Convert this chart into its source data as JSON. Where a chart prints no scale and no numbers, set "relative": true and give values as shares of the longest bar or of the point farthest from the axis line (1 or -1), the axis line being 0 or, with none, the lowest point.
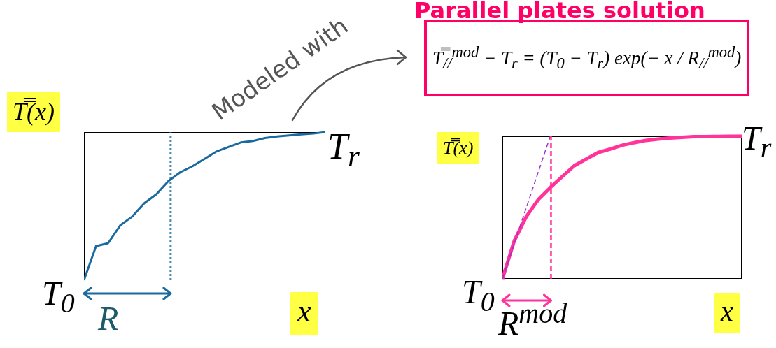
{
  "chart_data": [
    {
      "type": "line",
      "relative": true,
      "ylabel": "T̿(x)",
      "xlabel": "x",
      "tick_labels": false,
      "categories": [
        null,
        null,
        null,
        null,
        null,
        null,
        null,
        null,
        null,
        null,
        null,
        null,
        null,
        null,
        null,
        null,
        null,
        null,
        null,
        null,
        null
      ],
      "series": [
        {
          "color": "#1a6aa0",
          "values": [
            0,
            0.23,
            0.25,
            0.37,
            0.43,
            0.52,
            0.58,
            0.67,
            0.73,
            0.77,
            0.82,
            0.87,
            0.9,
            0.93,
            0.94,
            0.96,
            0.97,
            0.978,
            0.985,
            0.99,
            1
          ]
        }
      ],
      "annotations": [
        "T$_{r}$",
        "T$_{0}$",
        "R",
        "Modeled with"
      ]
    },
    {
      "type": "line",
      "relative": true,
      "title": "Parallel plates solution",
      "ylabel": "T̿(x)",
      "xlabel": "x",
      "tick_labels": false,
      "categories": [
        null,
        null,
        null,
        null,
        null,
        null,
        null,
        null,
        null,
        null,
        null,
        null,
        null,
        null,
        null,
        null,
        null,
        null,
        null,
        null,
        null
      ],
      "series": [
        {
          "color": "#ff3399",
          "values": [
            0,
            0.268,
            0.437,
            0.556,
            0.64,
            0.717,
            0.793,
            0.84,
            0.886,
            0.91,
            0.937,
            0.955,
            0.971,
            0.98,
            0.988,
            0.993,
            0.997,
            0.998,
            0.999,
            1,
            1
          ]
        },
        {
          "color": "#9933cc",
          "line_style": "dashed",
          "values": [
            0,
            0.25,
            0.5,
            0.75,
            1,
            null,
            null,
            null,
            null,
            null,
            null,
            null,
            null,
            null,
            null,
            null,
            null,
            null,
            null,
            null,
            null
          ]
        }
      ],
      "annotations": [
        "T$_{r}$",
        "T$_{0}$",
        "R$^{mod}$",
        "T̿$_{//}$$^{mod}$ − T$_{r}$ = (T$_{0}$ − T$_{r}$) exp(− x / R$_{//}$$^{mod}$)"
      ]
    }
  ]
}
